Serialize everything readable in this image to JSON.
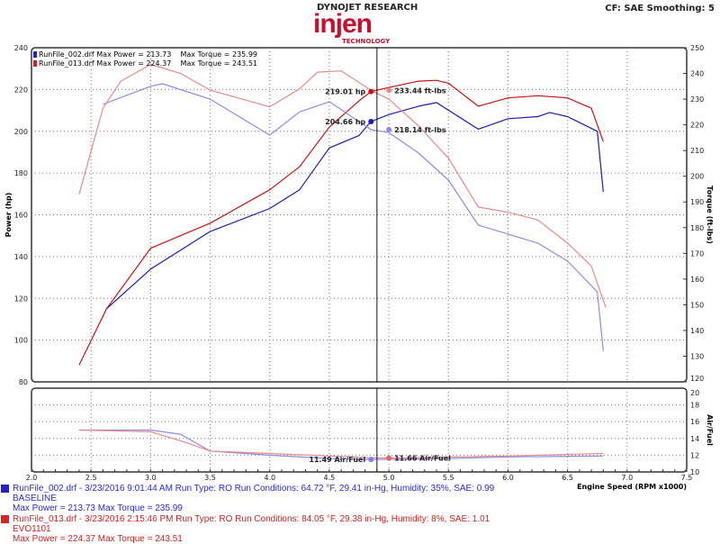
{
  "header": {
    "brand": "DYNOJET RESEARCH",
    "logo": "injen",
    "logo_sub": "TECHNOLOGY",
    "settings": "CF: SAE  Smoothing: 5"
  },
  "colors": {
    "blue_power": "#1a1ab8",
    "blue_torque": "#8c8ce6",
    "red_power": "#cc1111",
    "red_torque": "#e88a8a"
  },
  "legend": [
    {
      "text": "RunFile_002.drf Max Power = 213.73    Max Torque = 235.99",
      "color": "#2222cc"
    },
    {
      "text": "RunFile_013.drf Max Power = 224.37    Max Torque = 243.51",
      "color": "#cc2222"
    }
  ],
  "runs": [
    {
      "line1": "RunFile_002.drf - 3/23/2016 9:01:44 AM  Run Type: RO  Run Conditions: 64.72 °F, 29.41 in-Hg,  Humidity: 35%, SAE: 0.99",
      "line2": "BASELINE",
      "line3": "Max Power = 213.73  Max Torque = 235.99",
      "color": "#2a2ad0"
    },
    {
      "line1": "RunFile_013.drf - 3/23/2016 2:15:46 PM  Run Type: RO  Run Conditions: 84.05 °F, 29.38 in-Hg,  Humidity:  8%, SAE: 1.01",
      "line2": "EVO1101",
      "line3": "Max Power = 224.37  Max Torque = 243.51",
      "color": "#d02020"
    }
  ],
  "chart_data": {
    "type": "line",
    "xlabel": "Engine Speed (RPM x1000)",
    "xlim": [
      2.0,
      7.5
    ],
    "xticks": [
      "2.0",
      "2.5",
      "3.0",
      "3.5",
      "4.0",
      "4.5",
      "5.0",
      "5.5",
      "6.0",
      "6.5",
      "7.0",
      "7.5"
    ],
    "grid": true,
    "legend_placement": "top-left",
    "cursor_x": 4.9,
    "top": {
      "ylabel_left": "Power (hp)",
      "ylim_left": [
        80,
        240
      ],
      "yticks_left": [
        "80",
        "100",
        "120",
        "140",
        "160",
        "180",
        "200",
        "220",
        "240"
      ],
      "ylabel_right": "Torque (ft-lbs)",
      "ylim_right": [
        120,
        250
      ],
      "yticks_right": [
        "120",
        "130",
        "140",
        "150",
        "160",
        "170",
        "180",
        "190",
        "200",
        "210",
        "220",
        "230",
        "240",
        "250"
      ],
      "series": [
        {
          "id": "blue_power",
          "axis": "left",
          "x": [
            2.63,
            3.0,
            3.5,
            4.0,
            4.25,
            4.5,
            4.75,
            4.85,
            5.0,
            5.25,
            5.4,
            5.75,
            6.0,
            6.25,
            6.35,
            6.5,
            6.75,
            6.8
          ],
          "y": [
            115,
            134,
            152,
            163,
            172,
            192,
            198,
            204.66,
            208,
            212,
            213.73,
            201,
            206,
            207,
            209,
            207,
            200,
            171
          ]
        },
        {
          "id": "red_power",
          "axis": "left",
          "x": [
            2.4,
            2.63,
            3.0,
            3.5,
            4.0,
            4.25,
            4.5,
            4.75,
            4.85,
            5.0,
            5.25,
            5.4,
            5.5,
            5.75,
            6.0,
            6.25,
            6.5,
            6.7,
            6.8
          ],
          "y": [
            88,
            115,
            144,
            156,
            172,
            183,
            202,
            214.6,
            219.01,
            221,
            224,
            224.37,
            223,
            212,
            216,
            217,
            216,
            211,
            195
          ]
        },
        {
          "id": "blue_torque",
          "axis": "right",
          "x": [
            2.6,
            3.0,
            3.1,
            3.5,
            4.0,
            4.25,
            4.5,
            4.85,
            5.0,
            5.25,
            5.5,
            5.75,
            6.0,
            6.25,
            6.5,
            6.75,
            6.8
          ],
          "y": [
            228,
            235,
            235.99,
            230,
            216,
            225,
            229,
            218.14,
            217,
            209,
            198.5,
            181,
            177.5,
            174,
            167,
            155,
            132
          ]
        },
        {
          "id": "red_torque",
          "axis": "right",
          "x": [
            2.4,
            2.6,
            2.75,
            3.0,
            3.25,
            3.5,
            4.0,
            4.25,
            4.4,
            4.6,
            4.85,
            5.0,
            5.25,
            5.5,
            5.75,
            6.0,
            6.25,
            6.5,
            6.7,
            6.82
          ],
          "y": [
            193,
            226.5,
            237,
            243.51,
            240,
            233.5,
            227,
            234,
            240.5,
            241,
            233.44,
            230,
            219.5,
            207,
            188,
            186,
            183,
            174,
            165,
            149
          ]
        }
      ],
      "annotations": [
        {
          "text": "219.01 hp",
          "series": "red_power"
        },
        {
          "text": "233.44 ft-lbs",
          "series": "red_torque"
        },
        {
          "text": "204.66 hp",
          "series": "blue_power"
        },
        {
          "text": "218.14 ft-lbs",
          "series": "blue_torque"
        }
      ]
    },
    "bottom": {
      "ylabel_right": "Air/Fuel",
      "ylim": [
        10,
        20
      ],
      "yticks": [
        "10",
        "12",
        "14",
        "16",
        "18",
        "20"
      ],
      "series": [
        {
          "id": "blue_afr",
          "x": [
            2.4,
            3.0,
            3.25,
            3.5,
            4.0,
            4.5,
            4.85,
            5.5,
            6.0,
            6.8
          ],
          "y": [
            15.0,
            15.0,
            14.5,
            12.5,
            12.0,
            11.6,
            11.49,
            11.6,
            11.8,
            11.9
          ]
        },
        {
          "id": "red_afr",
          "x": [
            2.4,
            3.0,
            3.3,
            3.5,
            4.0,
            4.85,
            5.0,
            6.0,
            6.8
          ],
          "y": [
            15.0,
            14.8,
            13.5,
            12.5,
            12.2,
            11.7,
            11.66,
            11.9,
            12.2
          ]
        }
      ],
      "annotations": [
        {
          "text": "11.49 Air/Fuel",
          "series": "blue_afr"
        },
        {
          "text": "11.66 Air/Fuel",
          "series": "red_afr"
        }
      ]
    }
  }
}
